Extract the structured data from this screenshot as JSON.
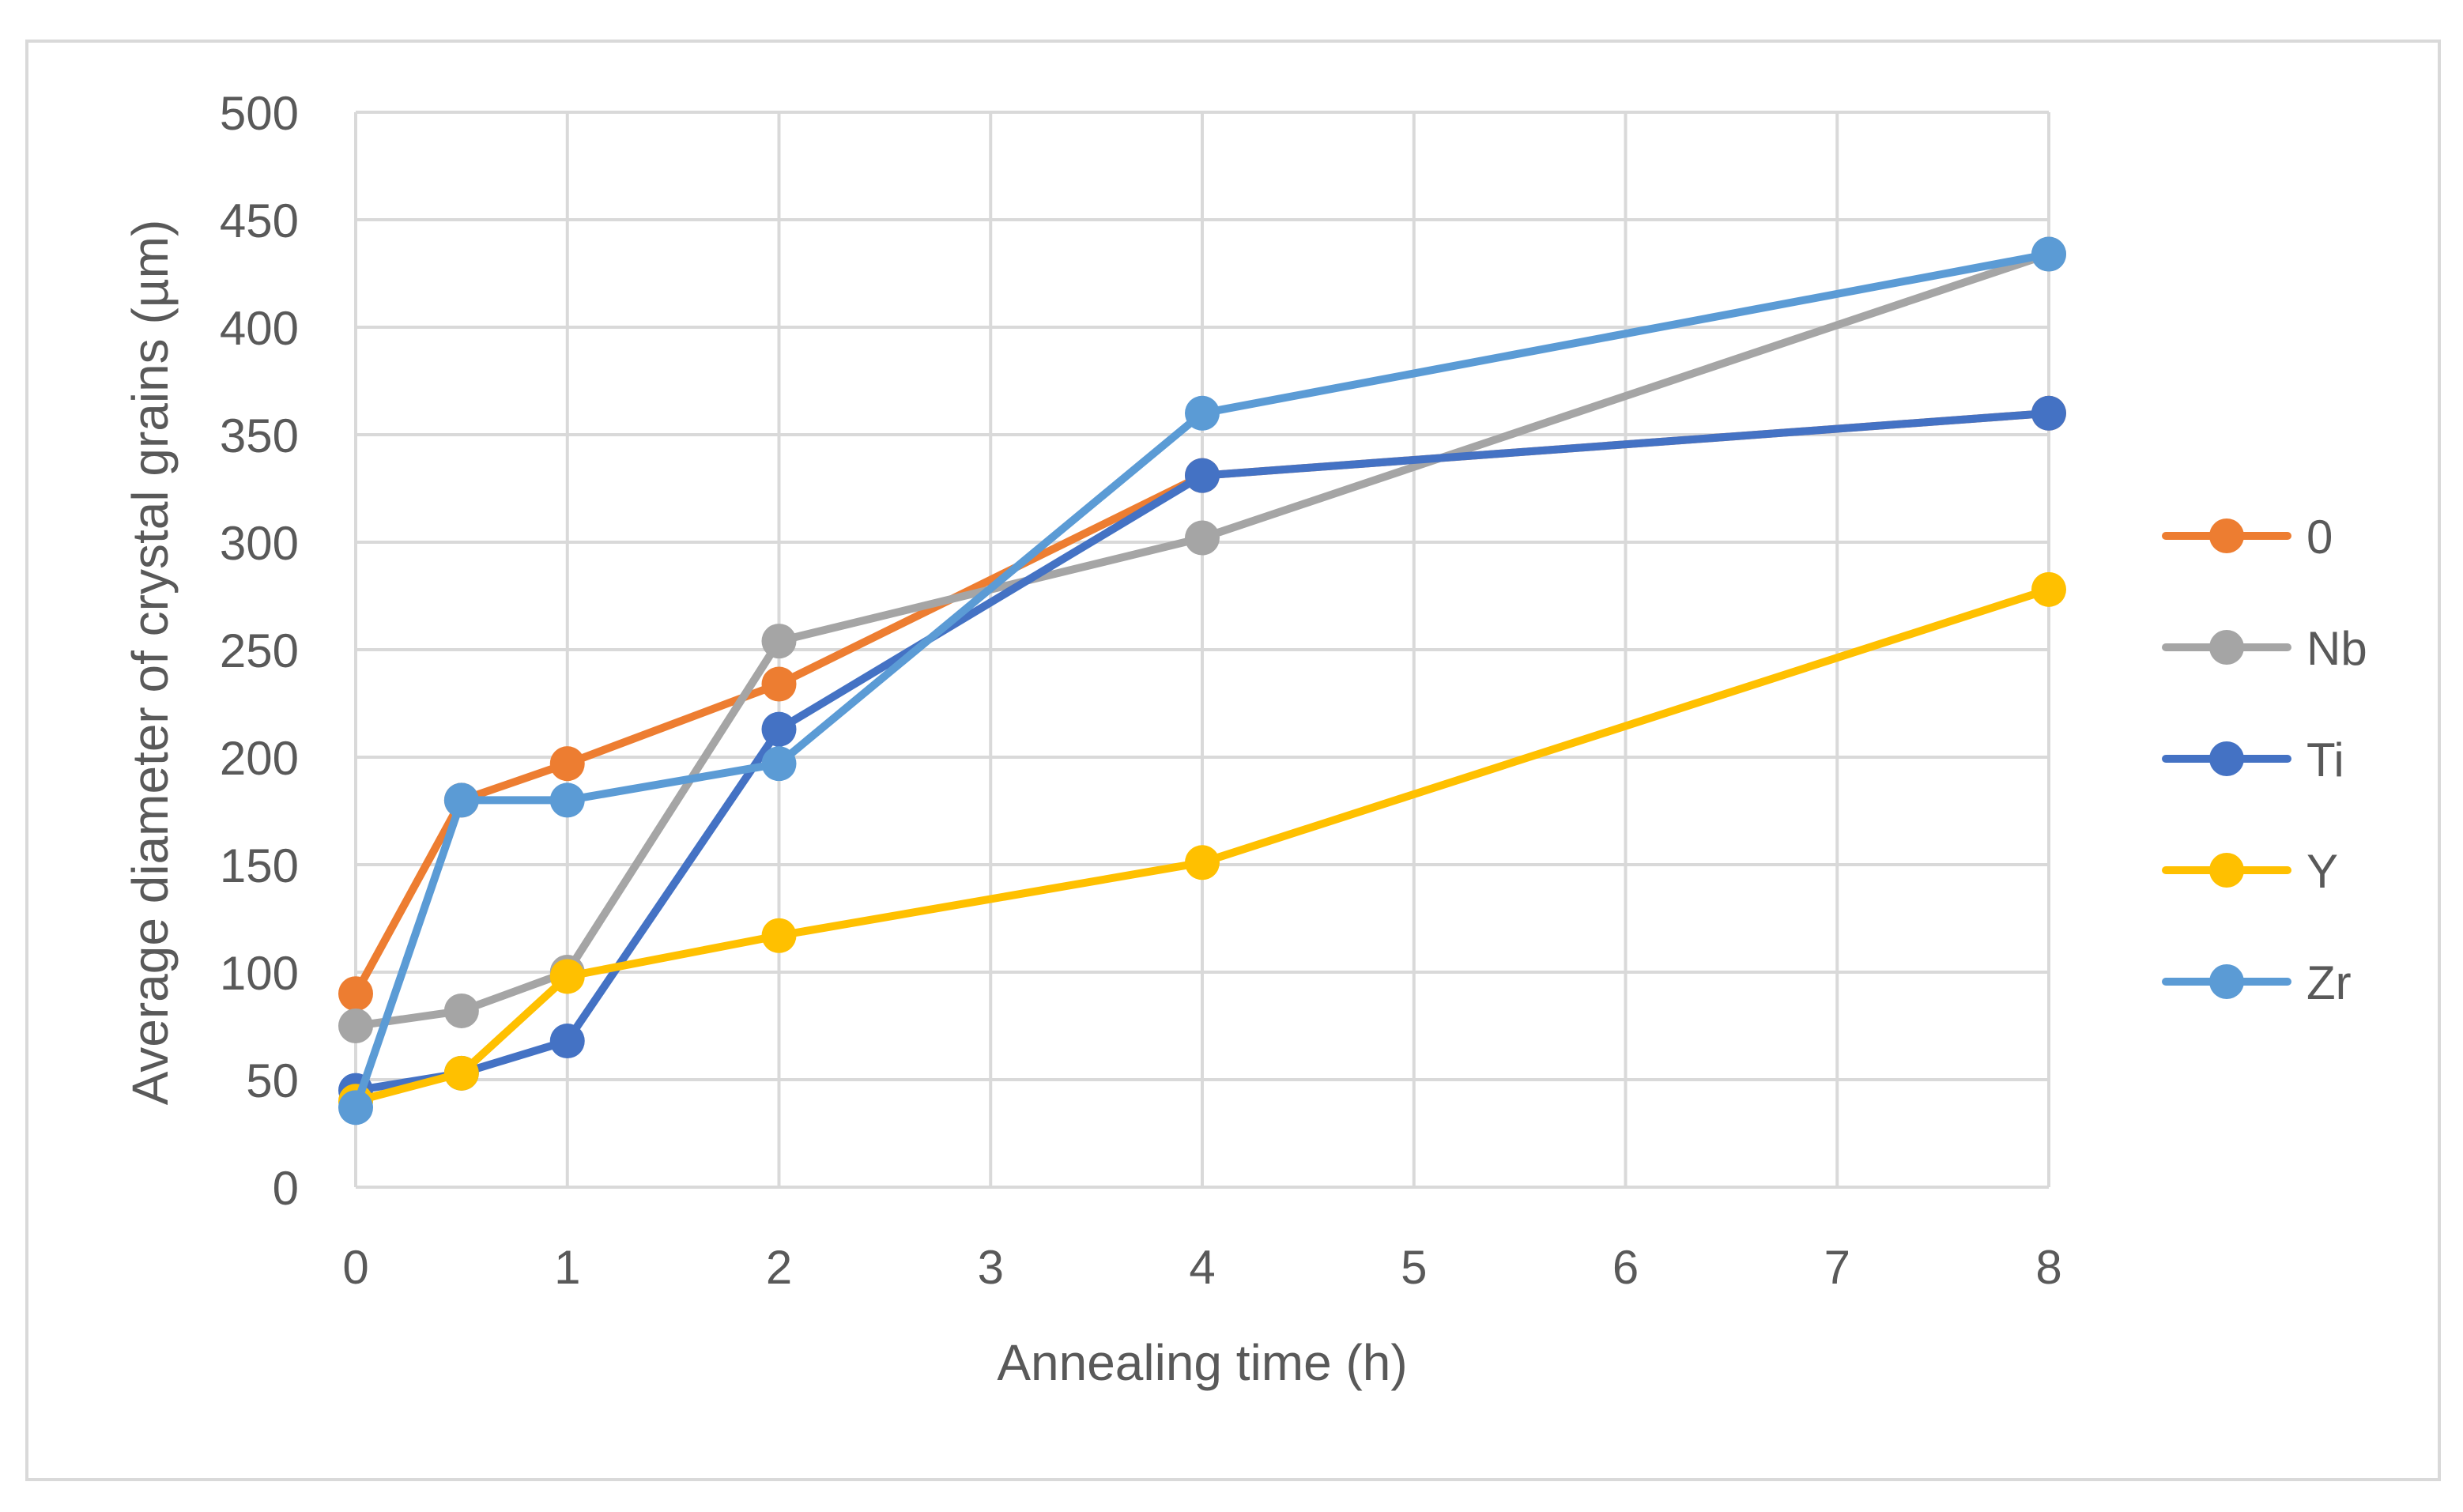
{
  "chart_data": {
    "type": "line",
    "title": "",
    "xlabel": "Annealing time (h)",
    "ylabel": "Average diameter of crystal grains (µm)",
    "xlim": [
      0,
      8
    ],
    "ylim": [
      0,
      500
    ],
    "x_ticks": [
      "0",
      "1",
      "2",
      "3",
      "4",
      "5",
      "6",
      "7",
      "8"
    ],
    "y_ticks": [
      "0",
      "50",
      "100",
      "150",
      "200",
      "250",
      "300",
      "350",
      "400",
      "450",
      "500"
    ],
    "grid": true,
    "legend_position": "right",
    "x": [
      0,
      0.5,
      1,
      2,
      4,
      8
    ],
    "series": [
      {
        "name": "0",
        "color": "#ed7d31",
        "values": [
          90,
          180,
          197,
          234,
          331,
          360
        ]
      },
      {
        "name": "Nb",
        "color": "#a5a5a5",
        "values": [
          75,
          82,
          100,
          254,
          302,
          434
        ]
      },
      {
        "name": "Ti",
        "color": "#4472c4",
        "values": [
          45,
          53,
          68,
          213,
          331,
          360
        ]
      },
      {
        "name": "Y",
        "color": "#ffc000",
        "values": [
          40,
          53,
          98,
          117,
          151,
          278
        ]
      },
      {
        "name": "Zr",
        "color": "#5b9bd5",
        "values": [
          37,
          180,
          180,
          197,
          360,
          434
        ]
      }
    ]
  }
}
